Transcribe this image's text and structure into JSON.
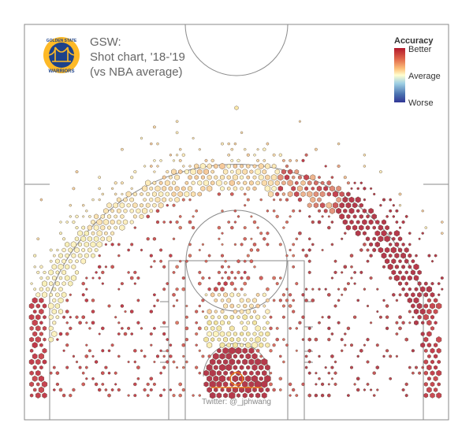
{
  "title": {
    "team": "GSW:",
    "subtitle": "Shot chart, '18-'19",
    "comparison": "(vs NBA average)"
  },
  "logo": {
    "top_text": "GOLDEN STATE",
    "bottom_text": "WARRIORS",
    "colors": {
      "blue": "#1d428a",
      "gold": "#fdb927"
    }
  },
  "legend": {
    "title": "Accuracy",
    "better": "Better",
    "average": "Average",
    "worse": "Worse",
    "colors": [
      "#b2182b",
      "#d6604d",
      "#f4a582",
      "#fee090",
      "#ffffbf",
      "#abd9e9",
      "#4575b4",
      "#2c3e7a"
    ]
  },
  "credit": "Twitter: @_jphwang",
  "chart_data": {
    "type": "heatmap",
    "encoding": "hexbin: marker size = shot frequency, marker color = accuracy vs NBA average",
    "zones": [
      {
        "zone": "restricted area",
        "frequency": "highest",
        "accuracy": "better"
      },
      {
        "zone": "paint (non-RA)",
        "frequency": "high",
        "accuracy": "average"
      },
      {
        "zone": "mid-range (elbows/wings)",
        "frequency": "medium",
        "accuracy": "better"
      },
      {
        "zone": "left corner three",
        "frequency": "medium",
        "accuracy": "better"
      },
      {
        "zone": "right corner three",
        "frequency": "medium",
        "accuracy": "better"
      },
      {
        "zone": "left wing three",
        "frequency": "high",
        "accuracy": "average"
      },
      {
        "zone": "top of key three",
        "frequency": "high",
        "accuracy": "slightly better"
      },
      {
        "zone": "right wing three",
        "frequency": "high",
        "accuracy": "better"
      },
      {
        "zone": "deep three",
        "frequency": "low",
        "accuracy": "average"
      }
    ]
  }
}
